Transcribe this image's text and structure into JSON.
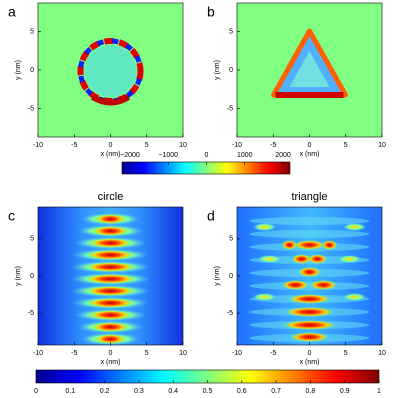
{
  "chart_data": [
    {
      "type": "heatmap",
      "panel_label": "a",
      "xlabel": "x (nm)",
      "ylabel": "y (nm)",
      "xlim": [
        -10,
        10
      ],
      "ylim": [
        -8.7,
        8.7
      ],
      "xticks": [
        -10,
        -5,
        0,
        5,
        10
      ],
      "yticks": [
        -5,
        0,
        5
      ],
      "colormap": "jet"
    },
    {
      "type": "heatmap",
      "panel_label": "b",
      "xlabel": "x (nm)",
      "ylabel": "y (nm)",
      "xlim": [
        -10,
        10
      ],
      "ylim": [
        -8.7,
        8.7
      ],
      "xticks": [
        -10,
        -5,
        0,
        5,
        10
      ],
      "yticks": [
        -5,
        0,
        5
      ],
      "colormap": "jet"
    },
    {
      "type": "heatmap",
      "panel_label": "c",
      "title": "circle",
      "xlabel": "x (nm)",
      "ylabel": "y (nm)",
      "xlim": [
        -10,
        10
      ],
      "ylim": [
        -9.3,
        9.3
      ],
      "xticks": [
        -10,
        -5,
        0,
        5,
        10
      ],
      "yticks": [
        -5,
        0,
        5
      ],
      "colormap": "jet"
    },
    {
      "type": "heatmap",
      "panel_label": "d",
      "title": "triangle",
      "xlabel": "x (nm)",
      "ylabel": "y (nm)",
      "xlim": [
        -10,
        10
      ],
      "ylim": [
        -9.3,
        9.3
      ],
      "xticks": [
        -10,
        -5,
        0,
        5,
        10
      ],
      "yticks": [
        -5,
        0,
        5
      ],
      "colormap": "jet"
    }
  ],
  "colorbars": [
    {
      "lim": [
        -2000,
        2000
      ],
      "ticks": [
        {
          "value": -2000,
          "label": "−2000"
        },
        {
          "value": -1000,
          "label": "−1000"
        },
        0,
        1000,
        2000
      ],
      "colormap": "jet"
    },
    {
      "lim": [
        0,
        1
      ],
      "ticks": [
        0,
        0.1,
        0.2,
        0.3,
        0.4,
        0.5,
        0.6,
        0.7,
        0.8,
        0.9,
        1
      ],
      "colormap": "jet"
    }
  ]
}
